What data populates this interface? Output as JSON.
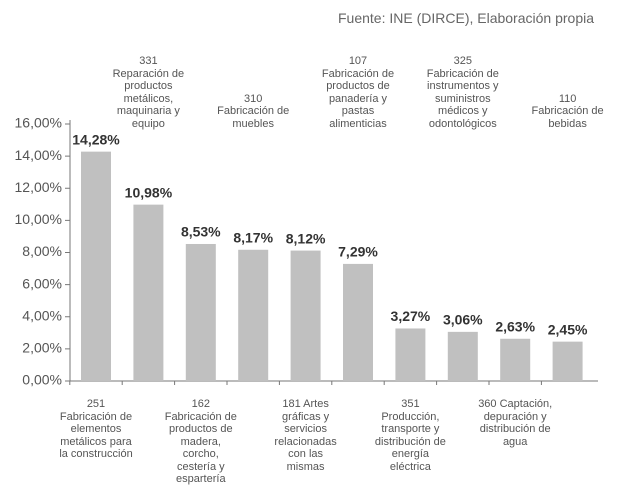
{
  "chart_data": {
    "type": "bar",
    "source": "Fuente: INE (DIRCE), Elaboración propia",
    "categories": [
      "251\nFabricación de\nelementos\nmetálicos para\nla construcción",
      "331\nReparación de\nproductos\nmetálicos,\nmaquinaria y\nequipo",
      "162\nFabricación de\nproductos de\nmadera,\ncorcho,\ncestería y\nespartería",
      "310\nFabricación de\nmuebles",
      "181 Artes\ngráficas y\nservicios\nrelacionadas\ncon las\nmismas",
      "107\nFabricación de\nproductos de\npanadería y\npastas\nalimenticias",
      "351\nProducción,\ntransporte y\ndistribución de\nenergía\neléctrica",
      "325\nFabricación de\ninstrumentos y\nsuministros\nmédicos y\nodontológicos",
      "360 Captación,\ndepuración y\ndistribución de\nagua",
      "110\nFabricación de\nbebidas"
    ],
    "values": [
      14.28,
      10.98,
      8.53,
      8.17,
      8.12,
      7.29,
      3.27,
      3.06,
      2.63,
      2.45
    ],
    "value_labels": [
      "14,28%",
      "10,98%",
      "8,53%",
      "8,17%",
      "8,12%",
      "7,29%",
      "3,27%",
      "3,06%",
      "2,63%",
      "2,45%"
    ],
    "color": "#c0c0c0",
    "ylim": [
      0,
      16
    ],
    "yticks": [
      {
        "value": 0,
        "label": "0,00%"
      },
      {
        "value": 2,
        "label": "2,00%"
      },
      {
        "value": 4,
        "label": "4,00%"
      },
      {
        "value": 6,
        "label": "6,00%"
      },
      {
        "value": 8,
        "label": "8,00%"
      },
      {
        "value": 10,
        "label": "10,00%"
      },
      {
        "value": 12,
        "label": "12,00%"
      },
      {
        "value": 14,
        "label": "14,00%"
      },
      {
        "value": 16,
        "label": "16,00%"
      }
    ]
  }
}
